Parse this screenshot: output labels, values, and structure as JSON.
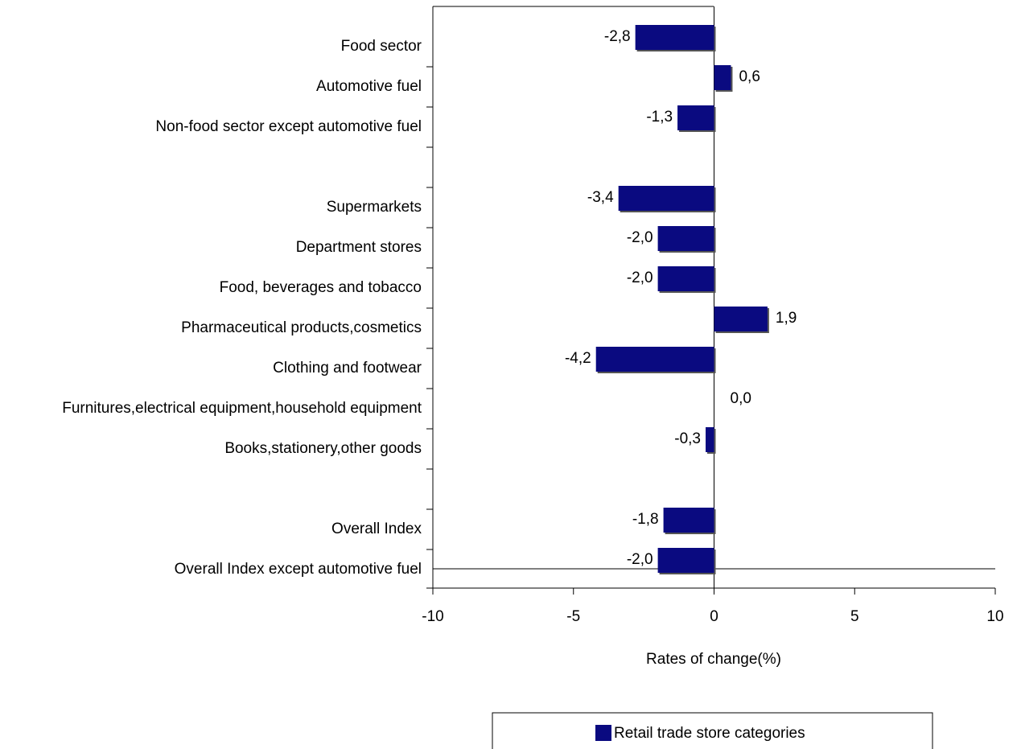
{
  "chart_data": {
    "type": "hbar",
    "categories": [
      "Food sector",
      "Automotive fuel",
      "Non-food sector except automotive fuel",
      null,
      "Supermarkets",
      "Department stores",
      "Food, beverages and tobacco",
      "Pharmaceutical products,cosmetics",
      "Clothing and footwear",
      "Furnitures,electrical equipment,household equipment",
      "Books,stationery,other goods",
      null,
      "Overall Index",
      "Overall Index except automotive fuel"
    ],
    "series": [
      {
        "name": "Retail trade store categories",
        "color": "#0a0a80",
        "values": [
          -2.8,
          0.6,
          -1.3,
          null,
          -3.4,
          -2.0,
          -2.0,
          1.9,
          -4.2,
          0.0,
          -0.3,
          null,
          -1.8,
          -2.0
        ],
        "value_labels": [
          "-2,8",
          "0,6",
          "-1,3",
          null,
          "-3,4",
          "-2,0",
          "-2,0",
          "1,9",
          "-4,2",
          "0,0",
          "-0,3",
          null,
          "-1,8",
          "-2,0"
        ]
      }
    ],
    "xlabel": "Rates of change(%)",
    "xlim": [
      -10,
      10
    ],
    "xticks": [
      -10,
      -5,
      0,
      5,
      10
    ],
    "legend": "bottom"
  }
}
